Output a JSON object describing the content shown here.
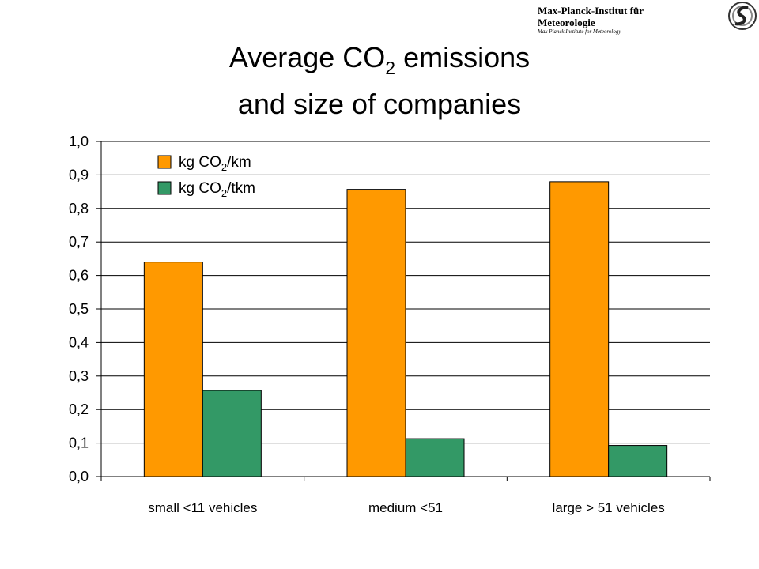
{
  "brand": {
    "name": "Max-Planck-Institut für Meteorologie",
    "subname": "Max Planck Institute for Meteorology"
  },
  "title": {
    "line1_prefix": "Average CO",
    "line1_sub": "2",
    "line1_suffix": " emissions",
    "line2": "and size of companies"
  },
  "colors": {
    "series_km": "#FF9900",
    "series_tkm": "#339966"
  },
  "chart_data": {
    "type": "bar",
    "categories": [
      "small <11 vehicles",
      "medium <51",
      "large > 51 vehicles"
    ],
    "series": [
      {
        "name": "kg CO2/km",
        "legend_prefix": "kg CO",
        "legend_sub": "2",
        "legend_suffix": "/km",
        "values": [
          0.64,
          0.857,
          0.88
        ]
      },
      {
        "name": "kg CO2/tkm",
        "legend_prefix": "kg CO",
        "legend_sub": "2",
        "legend_suffix": "/tkm",
        "values": [
          0.257,
          0.113,
          0.093
        ]
      }
    ],
    "ylim": [
      0,
      1.0
    ],
    "yticks": [
      "0,0",
      "0,1",
      "0,2",
      "0,3",
      "0,4",
      "0,5",
      "0,6",
      "0,7",
      "0,8",
      "0,9",
      "1,0"
    ],
    "grid": true,
    "legend_position": "top-left"
  }
}
